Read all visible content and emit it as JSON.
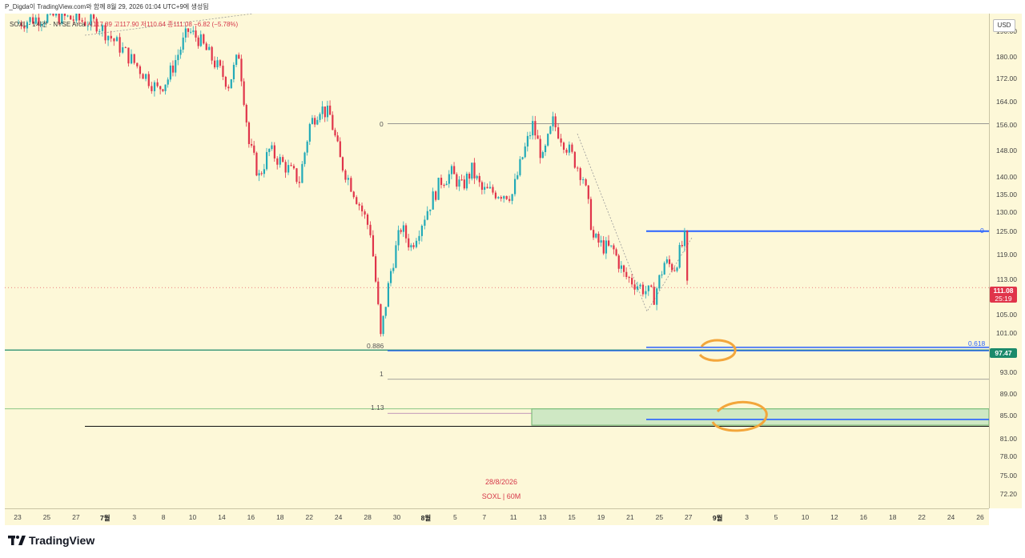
{
  "header": {
    "attribution": "P_Digda이 TradingView.com와 함께 8월 29, 2026 01:04 UTC+9에 생성됨"
  },
  "legend": {
    "symbol": "SOXL · 1시간 · NYSE Arca",
    "open": "시117.89",
    "high": "고117.90",
    "low": "저110.64",
    "close": "종111.08",
    "change": "−6.82 (−5.78%)"
  },
  "axis_right": {
    "currency": "USD",
    "ticks": [
      "190.00",
      "180.00",
      "172.00",
      "164.00",
      "156.00",
      "148.00",
      "140.00",
      "135.00",
      "130.00",
      "125.00",
      "119.00",
      "113.00",
      "105.00",
      "101.00",
      "97.00",
      "93.00",
      "89.00",
      "85.00",
      "81.00",
      "78.00",
      "75.00",
      "72.20"
    ],
    "last_price": "111.08",
    "countdown": "25:19",
    "level_price": "97.47"
  },
  "axis_bottom": {
    "ticks": [
      "23",
      "25",
      "27",
      "7월",
      "3",
      "8",
      "10",
      "14",
      "16",
      "18",
      "22",
      "24",
      "28",
      "30",
      "8월",
      "5",
      "7",
      "11",
      "13",
      "15",
      "19",
      "21",
      "25",
      "27",
      "9월",
      "3",
      "5",
      "10",
      "12",
      "16",
      "18",
      "22",
      "24",
      "26"
    ]
  },
  "annotations": {
    "fib_a_top": "0",
    "fib_a_0886": "0.886",
    "fib_a_1": "1",
    "fib_a_113": "1.13",
    "fib_b_top": "0",
    "fib_b_0618": "0.618"
  },
  "watermark": {
    "date": "28/8/2026",
    "symbol_tf": "SOXL | 60M"
  },
  "brand": {
    "name": "TradingView"
  },
  "colors": {
    "up": "#22aab8",
    "down": "#e0344a",
    "blue_level": "#2962ff",
    "green_level": "#1b8a6b",
    "highlight": "#f3a63b",
    "pane_bg": "#fdf8d8"
  },
  "chart_data": {
    "type": "candlestick",
    "symbol": "SOXL",
    "interval": "1h",
    "ylim": [
      70,
      197
    ],
    "y_scale": "log",
    "last": {
      "open": 117.89,
      "high": 117.9,
      "low": 110.64,
      "close": 111.08
    },
    "swing_path_close": [
      [
        "06-23",
        193
      ],
      [
        "06-25",
        195
      ],
      [
        "06-27",
        196
      ],
      [
        "07-01",
        193
      ],
      [
        "07-03",
        185
      ],
      [
        "07-07",
        168
      ],
      [
        "07-08",
        172
      ],
      [
        "07-09",
        181
      ],
      [
        "07-10",
        190
      ],
      [
        "07-11",
        187
      ],
      [
        "07-14",
        170
      ],
      [
        "07-15",
        181
      ],
      [
        "07-16",
        150
      ],
      [
        "07-17",
        140
      ],
      [
        "07-18",
        148
      ],
      [
        "07-21",
        139
      ],
      [
        "07-22",
        156
      ],
      [
        "07-23",
        162
      ],
      [
        "07-24",
        159
      ],
      [
        "07-25",
        145
      ],
      [
        "07-28",
        125
      ],
      [
        "07-29",
        100
      ],
      [
        "07-30",
        115
      ],
      [
        "07-31",
        126
      ],
      [
        "08-01",
        121
      ],
      [
        "08-04",
        139
      ],
      [
        "08-05",
        141
      ],
      [
        "08-06",
        137
      ],
      [
        "08-07",
        142
      ],
      [
        "08-08",
        136
      ],
      [
        "08-11",
        135
      ],
      [
        "08-12",
        146
      ],
      [
        "08-13",
        156
      ],
      [
        "08-14",
        145
      ],
      [
        "08-15",
        157
      ],
      [
        "08-18",
        140
      ],
      [
        "08-19",
        123
      ],
      [
        "08-20",
        121
      ],
      [
        "08-21",
        120
      ],
      [
        "08-22",
        114
      ],
      [
        "08-25",
        109
      ],
      [
        "08-26",
        117
      ],
      [
        "08-27",
        116
      ],
      [
        "08-28",
        123
      ],
      [
        "08-28",
        111.08
      ]
    ],
    "horizontal_levels": [
      {
        "name": "fib-a 0",
        "price": 156.5
      },
      {
        "name": "fib-a 0.886",
        "price": 97.5
      },
      {
        "name": "fib-a 1",
        "price": 91.7
      },
      {
        "name": "fib-a 1.13",
        "price": 85.4
      },
      {
        "name": "fib-b 0",
        "price": 125.0
      },
      {
        "name": "fib-b 0.618",
        "price": 97.7
      },
      {
        "name": "blue target",
        "price": 84.3
      },
      {
        "name": "green support",
        "price": 97.47
      },
      {
        "name": "black support",
        "price": 83.1
      }
    ],
    "zone": {
      "low": 83.3,
      "high": 86.2
    }
  }
}
